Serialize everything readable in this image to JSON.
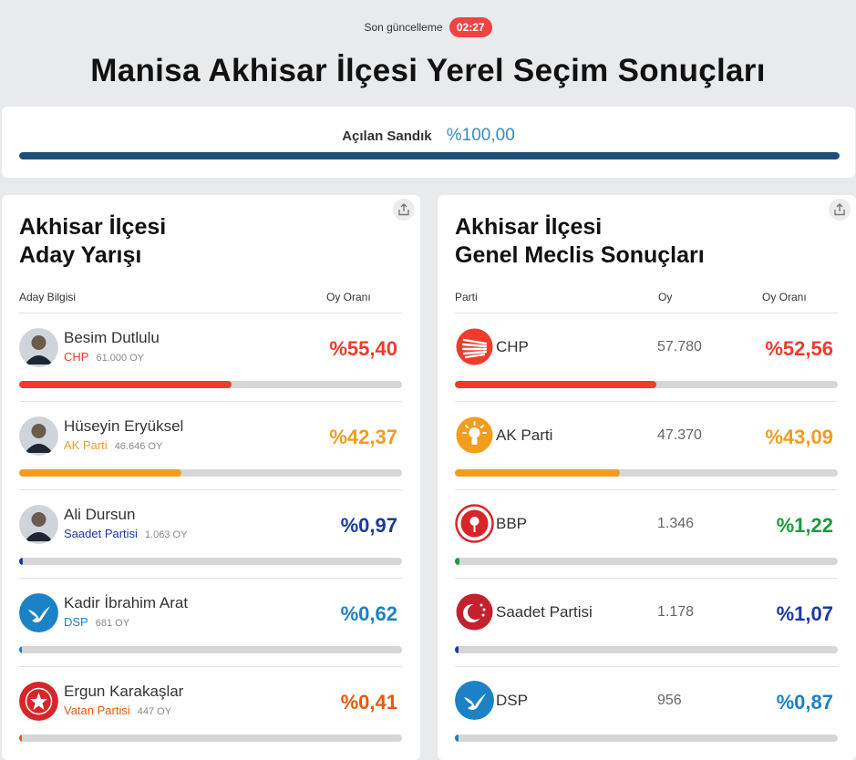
{
  "header": {
    "updated_label": "Son güncelleme",
    "updated_time": "02:27",
    "title": "Manisa Akhisar İlçesi Yerel Seçim Sonuçları"
  },
  "ballot": {
    "label": "Açılan Sandık",
    "value": "%100,00",
    "fraction": 1.0,
    "color": "#1f4e79"
  },
  "candidates": {
    "title_line1": "Akhisar İlçesi",
    "title_line2": "Aday Yarışı",
    "col_candidate": "Aday Bilgisi",
    "col_rate": "Oy Oranı",
    "items": [
      {
        "name": "Besim Dutlulu",
        "party": "CHP",
        "votes": "61.000 OY",
        "pct": "%55,40",
        "value": 55.4,
        "color": "#ef3b2c",
        "avatar": "photo-avatar"
      },
      {
        "name": "Hüseyin Eryüksel",
        "party": "AK Parti",
        "votes": "46.646 OY",
        "pct": "%42,37",
        "value": 42.37,
        "color": "#f39c1e",
        "avatar": "photo-avatar"
      },
      {
        "name": "Ali Dursun",
        "party": "Saadet Partisi",
        "votes": "1.063 OY",
        "pct": "%0,97",
        "value": 0.97,
        "color": "#1a3b9c",
        "avatar": "photo-avatar"
      },
      {
        "name": "Kadir İbrahim Arat",
        "party": "DSP",
        "votes": "681 OY",
        "pct": "%0,62",
        "value": 0.62,
        "color": "#1b82c5",
        "avatar": "dsp-dove-icon"
      },
      {
        "name": "Ergun Karakaşlar",
        "party": "Vatan Partisi",
        "votes": "447 OY",
        "pct": "%0,41",
        "value": 0.41,
        "color": "#e8590c",
        "avatar": "vatan-star-icon"
      }
    ]
  },
  "council": {
    "title_line1": "Akhisar İlçesi",
    "title_line2": "Genel Meclis Sonuçları",
    "col_party": "Parti",
    "col_votes": "Oy",
    "col_rate": "Oy Oranı",
    "items": [
      {
        "party": "CHP",
        "votes": "57.780",
        "pct": "%52,56",
        "value": 52.56,
        "color": "#ef3b2c",
        "logo": "chp-logo-icon"
      },
      {
        "party": "AK Parti",
        "votes": "47.370",
        "pct": "%43,09",
        "value": 43.09,
        "color": "#f39c1e",
        "logo": "akp-logo-icon"
      },
      {
        "party": "BBP",
        "votes": "1.346",
        "pct": "%1,22",
        "value": 1.22,
        "color": "#1a9c3a",
        "logo": "bbp-logo-icon"
      },
      {
        "party": "Saadet Partisi",
        "votes": "1.178",
        "pct": "%1,07",
        "value": 1.07,
        "color": "#1a3b9c",
        "logo": "saadet-logo-icon"
      },
      {
        "party": "DSP",
        "votes": "956",
        "pct": "%0,87",
        "value": 0.87,
        "color": "#1b82c5",
        "logo": "dsp-logo-icon"
      }
    ]
  }
}
